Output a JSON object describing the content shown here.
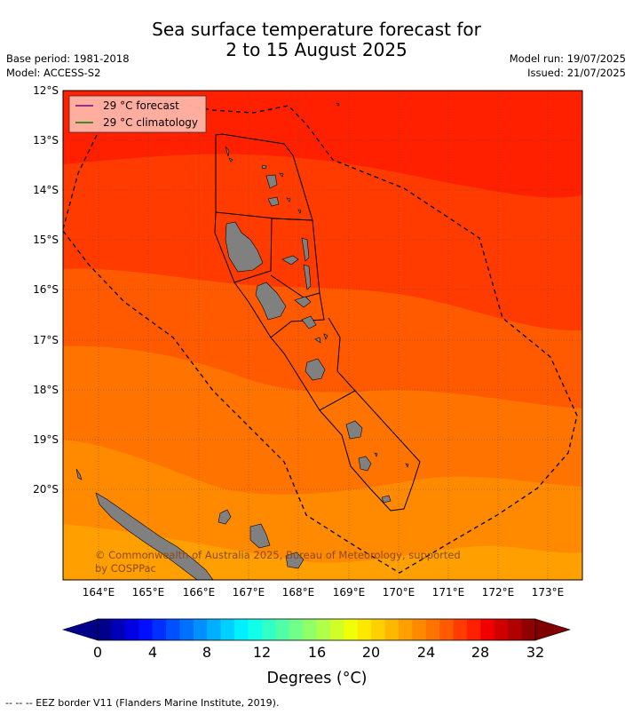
{
  "title_line1": "Sea surface temperature forecast for",
  "title_line2": "2 to 15 August 2025",
  "base_period": "Base period: 1981-2018",
  "model": "Model: ACCESS-S2",
  "model_run": "Model run: 19/07/2025",
  "issued": "Issued: 21/07/2025",
  "legend": {
    "forecast": "29 °C  forecast",
    "climatology": "29 °C  climatology",
    "forecast_color": "#800080",
    "climatology_color": "#008000"
  },
  "lat_labels": [
    "12°S",
    "13°S",
    "14°S",
    "15°S",
    "16°S",
    "17°S",
    "18°S",
    "19°S",
    "20°S"
  ],
  "lon_labels": [
    "164°E",
    "165°E",
    "166°E",
    "167°E",
    "168°E",
    "169°E",
    "170°E",
    "171°E",
    "172°E",
    "173°E"
  ],
  "copyright": "© Commonwealth of Australia 2025, Bureau of Meteorology, supported by COSPPac",
  "colorbar": {
    "ticks": [
      "0",
      "4",
      "8",
      "12",
      "16",
      "20",
      "24",
      "28",
      "32"
    ],
    "label": "Degrees (°C)"
  },
  "footer": "--  --  -- EEZ border V11 (Flanders Marine Institute, 2019).",
  "colors": {
    "band_hot": "#ff2000",
    "band_2": "#ff3b00",
    "band_3": "#ff5a00",
    "band_4": "#ff7300",
    "band_5": "#ff8a00",
    "band_6": "#ffa000",
    "land": "#808080"
  }
}
